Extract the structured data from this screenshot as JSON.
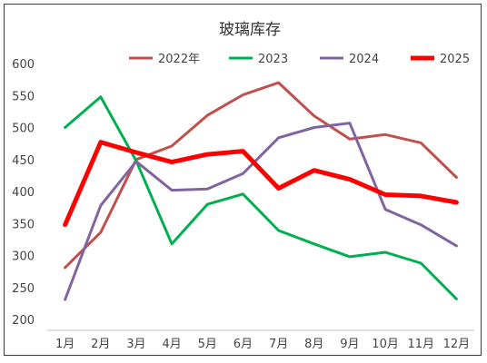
{
  "chart_data": {
    "type": "line",
    "title": "玻璃库存",
    "xlabel": "",
    "ylabel": "",
    "categories": [
      "1月",
      "2月",
      "3月",
      "4月",
      "5月",
      "6月",
      "7月",
      "8月",
      "9月",
      "10月",
      "11月",
      "12月"
    ],
    "ylim": [
      200,
      600
    ],
    "yticks": [
      200,
      250,
      300,
      350,
      400,
      450,
      500,
      550,
      600
    ],
    "grid": false,
    "legend_position": "top",
    "series": [
      {
        "name": "2022年",
        "color": "#c0504d",
        "width": 3,
        "values": [
          281,
          336,
          450,
          471,
          519,
          551,
          570,
          518,
          482,
          489,
          476,
          422
        ]
      },
      {
        "name": "2023",
        "color": "#00b050",
        "width": 3,
        "values": [
          500,
          548,
          448,
          318,
          380,
          396,
          339,
          318,
          298,
          305,
          288,
          232
        ]
      },
      {
        "name": "2024",
        "color": "#8064a2",
        "width": 3,
        "values": [
          231,
          378,
          447,
          402,
          404,
          428,
          484,
          500,
          507,
          372,
          348,
          315
        ]
      },
      {
        "name": "2025",
        "color": "#ff0000",
        "width": 5,
        "values": [
          348,
          477,
          461,
          446,
          458,
          463,
          405,
          433,
          419,
          395,
          393,
          383
        ]
      }
    ]
  }
}
